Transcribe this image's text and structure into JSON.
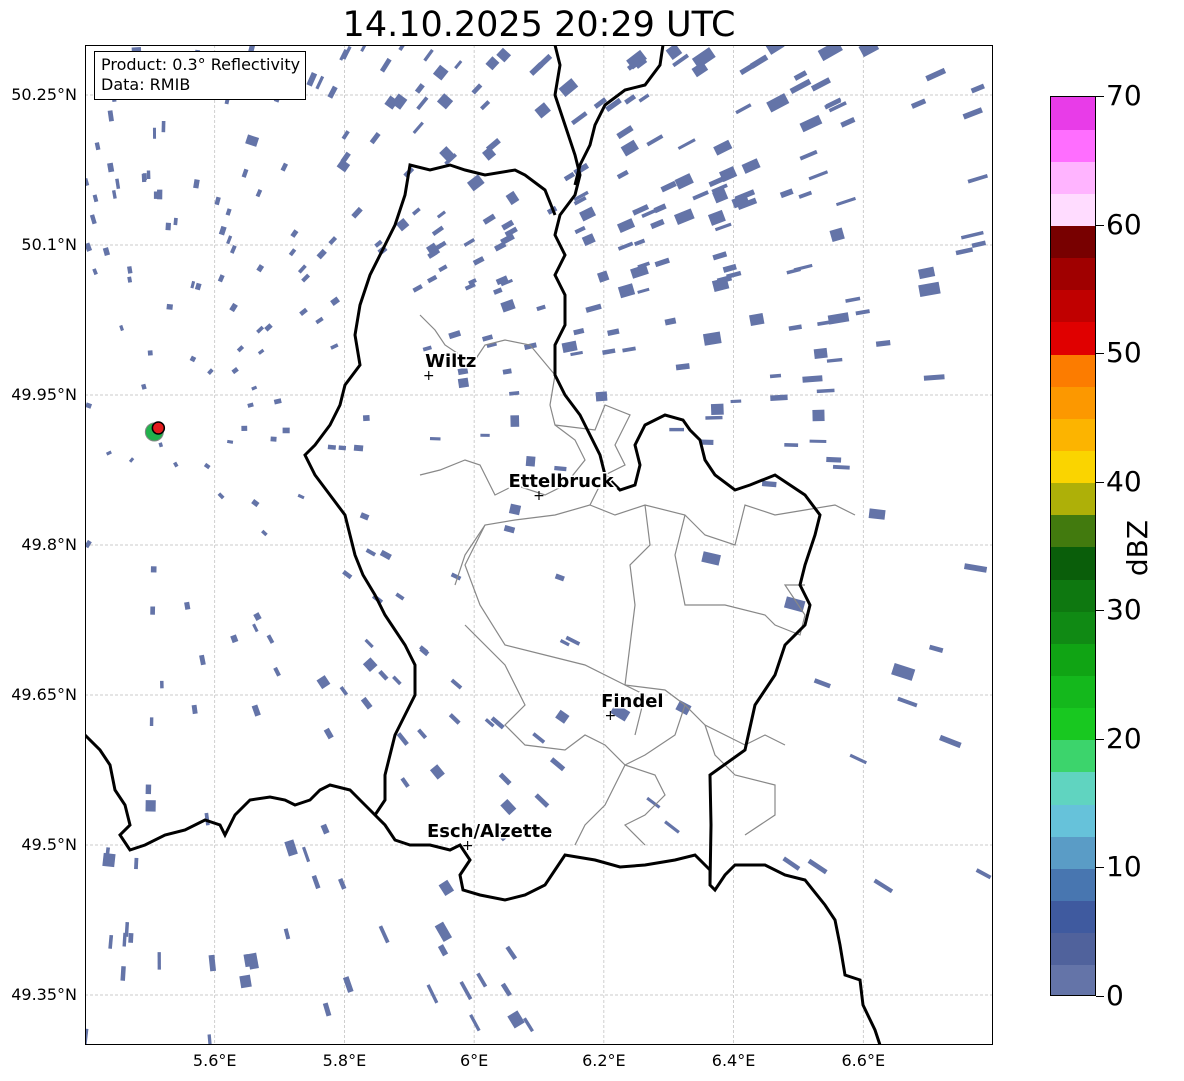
{
  "title": "14.10.2025 20:29 UTC",
  "info_box": {
    "product": "Product: 0.3° Reflectivity",
    "data": "Data: RMIB"
  },
  "axes": {
    "lat_ticks": [
      "50.25°N",
      "50.1°N",
      "49.95°N",
      "49.8°N",
      "49.65°N",
      "49.5°N",
      "49.35°N"
    ],
    "lon_ticks": [
      "5.6°E",
      "5.8°E",
      "6°E",
      "6.2°E",
      "6.4°E",
      "6.6°E"
    ],
    "lat_values": [
      50.25,
      50.1,
      49.95,
      49.8,
      49.65,
      49.5,
      49.35
    ],
    "lon_values": [
      5.6,
      5.8,
      6.0,
      6.2,
      6.4,
      6.6
    ],
    "lon_range": [
      5.4,
      6.8
    ],
    "lat_range": [
      49.3,
      50.3
    ],
    "grid": true
  },
  "cities": [
    {
      "name": "Wiltz",
      "lon": 5.93,
      "lat": 49.97
    },
    {
      "name": "Ettelbruck",
      "lon": 6.1,
      "lat": 49.85
    },
    {
      "name": "Findel",
      "lon": 6.21,
      "lat": 49.63
    },
    {
      "name": "Esch/Alzette",
      "lon": 5.99,
      "lat": 49.5
    }
  ],
  "radar_site": {
    "lon": 5.51,
    "lat": 49.915,
    "marker_color": "#e31a1c",
    "halo_color": "#22b14c"
  },
  "colorbar": {
    "label": "dBZ",
    "ticks": [
      "0",
      "10",
      "20",
      "30",
      "40",
      "50",
      "60",
      "70"
    ],
    "min": 0,
    "max": 70,
    "step": 2.5,
    "colors": [
      "#6474a8",
      "#50629c",
      "#3f5a9f",
      "#4876b0",
      "#5a9cc6",
      "#66c2da",
      "#60d4c0",
      "#3cd46c",
      "#18c820",
      "#14b81c",
      "#10a414",
      "#108a14",
      "#0e7810",
      "#0a5e0a",
      "#427a0e",
      "#aeb008",
      "#fad400",
      "#fcb400",
      "#fc9800",
      "#fc7c00",
      "#e00000",
      "#c00000",
      "#a00000",
      "#780000",
      "#ffdcff",
      "#ffb4ff",
      "#ff6eff",
      "#e83ce8"
    ]
  },
  "precip_color": "#6474a8"
}
